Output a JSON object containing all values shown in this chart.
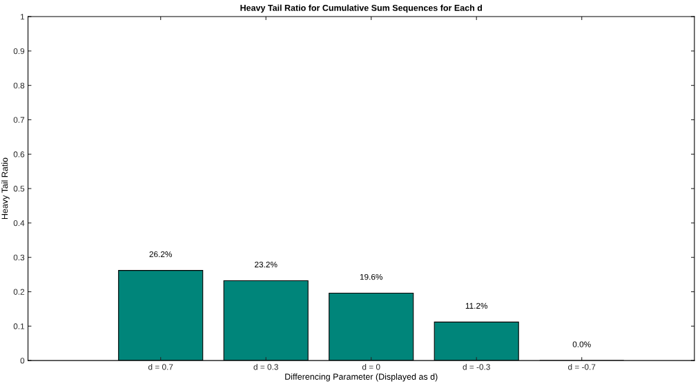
{
  "chart_data": {
    "type": "bar",
    "title": "Heavy Tail Ratio for Cumulative Sum Sequences for Each d",
    "xlabel": "Differencing Parameter (Displayed as d)",
    "ylabel": "Heavy Tail Ratio",
    "categories": [
      "d = 0.7",
      "d = 0.3",
      "d = 0",
      "d = -0.3",
      "d = -0.7"
    ],
    "values": [
      0.262,
      0.232,
      0.196,
      0.112,
      0.0
    ],
    "value_labels": [
      "26.2%",
      "23.2%",
      "19.6%",
      "11.2%",
      "0.0%"
    ],
    "color": "#00857a",
    "ylim": [
      0,
      1
    ],
    "yticks": [
      0,
      0.1,
      0.2,
      0.3,
      0.4,
      0.5,
      0.6,
      0.7,
      0.8,
      0.9,
      1
    ],
    "grid": false,
    "legend": false
  }
}
